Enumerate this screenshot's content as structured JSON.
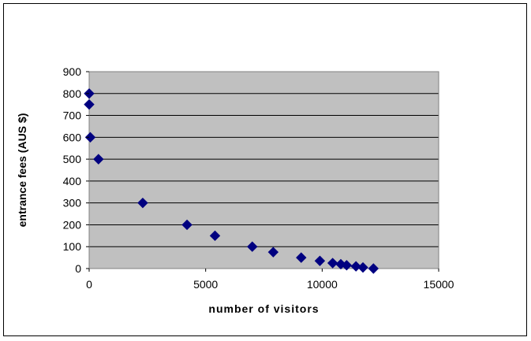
{
  "chart_data": {
    "type": "scatter",
    "title": "",
    "xlabel": "number of visitors",
    "ylabel": "entrance fees (AUS $)",
    "xlim": [
      0,
      15000
    ],
    "ylim": [
      0,
      900
    ],
    "x_ticks": [
      "0",
      "5000",
      "10000",
      "15000"
    ],
    "y_ticks": [
      "0",
      "100",
      "200",
      "300",
      "400",
      "500",
      "600",
      "700",
      "800",
      "900"
    ],
    "grid": "horizontal",
    "legend": "none",
    "plot_background": "#c0c0c0",
    "marker_color": "#000080",
    "marker": "diamond",
    "series": [
      {
        "points": [
          [
            0,
            800
          ],
          [
            0,
            750
          ],
          [
            50,
            600
          ],
          [
            400,
            500
          ],
          [
            2300,
            300
          ],
          [
            4200,
            200
          ],
          [
            5400,
            150
          ],
          [
            7000,
            100
          ],
          [
            7900,
            75
          ],
          [
            9100,
            50
          ],
          [
            9900,
            35
          ],
          [
            10450,
            25
          ],
          [
            10800,
            20
          ],
          [
            11050,
            15
          ],
          [
            11450,
            10
          ],
          [
            11750,
            5
          ],
          [
            12200,
            0
          ]
        ]
      }
    ]
  }
}
